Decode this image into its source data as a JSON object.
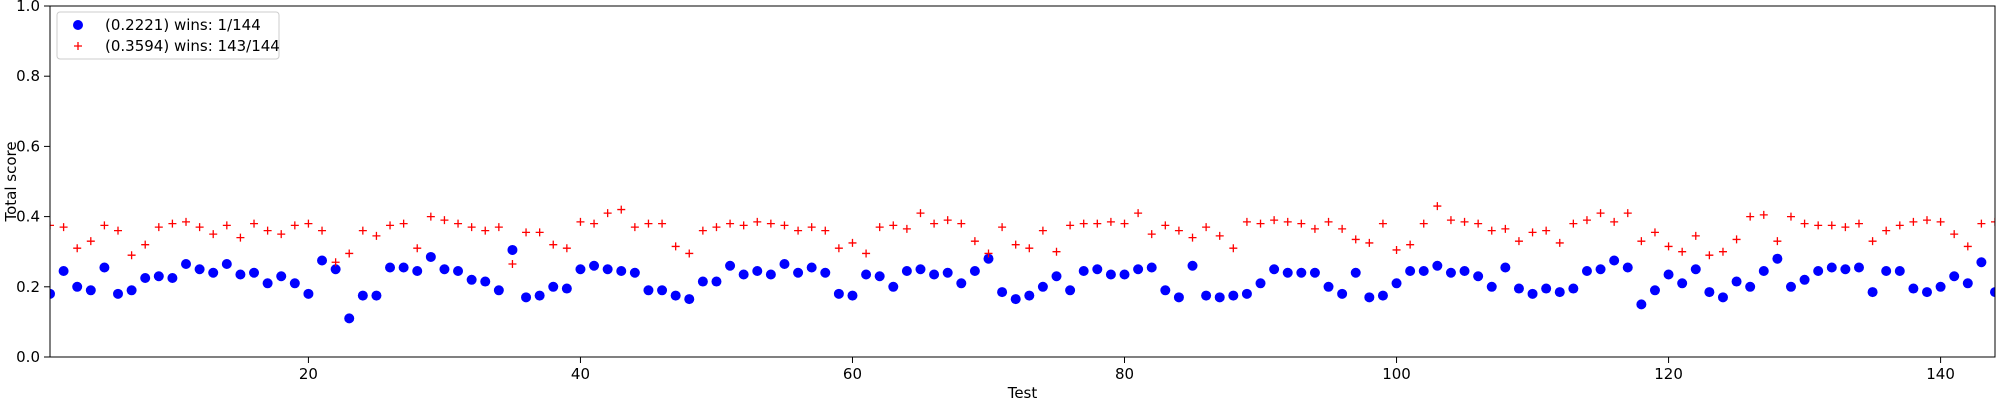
{
  "chart_data": {
    "type": "scatter",
    "title": "",
    "xlabel": "Test",
    "ylabel": "Total score",
    "xlim": [
      1,
      144
    ],
    "ylim": [
      0.0,
      1.0
    ],
    "xticks": [
      20,
      40,
      60,
      80,
      100,
      120,
      140
    ],
    "yticks": [
      0.0,
      0.2,
      0.4,
      0.6,
      0.8,
      1.0
    ],
    "xtick_labels": [
      "20",
      "40",
      "60",
      "80",
      "100",
      "120",
      "140"
    ],
    "ytick_labels": [
      "0.0",
      "0.2",
      "0.4",
      "0.6",
      "0.8",
      "1.0"
    ],
    "grid": false,
    "legend_position": "top-left",
    "colors": {
      "series1": "#0000ff",
      "series2": "#ff0000"
    },
    "series": [
      {
        "name": "(0.2221) wins: 1/144",
        "marker": "circle",
        "y": [
          0.18,
          0.245,
          0.2,
          0.19,
          0.255,
          0.18,
          0.19,
          0.225,
          0.23,
          0.225,
          0.265,
          0.25,
          0.24,
          0.265,
          0.235,
          0.24,
          0.21,
          0.23,
          0.21,
          0.18,
          0.275,
          0.25,
          0.11,
          0.175,
          0.175,
          0.255,
          0.255,
          0.245,
          0.285,
          0.25,
          0.245,
          0.22,
          0.215,
          0.19,
          0.305,
          0.17,
          0.175,
          0.2,
          0.195,
          0.25,
          0.26,
          0.25,
          0.245,
          0.24,
          0.19,
          0.19,
          0.175,
          0.165,
          0.215,
          0.215,
          0.26,
          0.235,
          0.245,
          0.235,
          0.265,
          0.24,
          0.255,
          0.24,
          0.18,
          0.175,
          0.235,
          0.23,
          0.2,
          0.245,
          0.25,
          0.235,
          0.24,
          0.21,
          0.245,
          0.28,
          0.185,
          0.165,
          0.175,
          0.2,
          0.23,
          0.19,
          0.245,
          0.25,
          0.235,
          0.235,
          0.25,
          0.255,
          0.19,
          0.17,
          0.26,
          0.175,
          0.17,
          0.175,
          0.18,
          0.21,
          0.25,
          0.24,
          0.24,
          0.24,
          0.2,
          0.18,
          0.24,
          0.17,
          0.175,
          0.21,
          0.245,
          0.245,
          0.26,
          0.24,
          0.245,
          0.23,
          0.2,
          0.255,
          0.195,
          0.18,
          0.195,
          0.185,
          0.195,
          0.245,
          0.25,
          0.275,
          0.255,
          0.15,
          0.19,
          0.235,
          0.21,
          0.25,
          0.185,
          0.17,
          0.215,
          0.2,
          0.245,
          0.28,
          0.2,
          0.22,
          0.245,
          0.255,
          0.25,
          0.255,
          0.185,
          0.245,
          0.245,
          0.195,
          0.185,
          0.2,
          0.23,
          0.21,
          0.27,
          0.185
        ]
      },
      {
        "name": "(0.3594) wins: 143/144",
        "marker": "plus",
        "y": [
          0.375,
          0.37,
          0.31,
          0.33,
          0.375,
          0.36,
          0.29,
          0.32,
          0.37,
          0.38,
          0.385,
          0.37,
          0.35,
          0.375,
          0.34,
          0.38,
          0.36,
          0.35,
          0.375,
          0.38,
          0.36,
          0.27,
          0.295,
          0.36,
          0.345,
          0.375,
          0.38,
          0.31,
          0.4,
          0.39,
          0.38,
          0.37,
          0.36,
          0.37,
          0.265,
          0.355,
          0.355,
          0.32,
          0.31,
          0.385,
          0.38,
          0.41,
          0.42,
          0.37,
          0.38,
          0.38,
          0.315,
          0.295,
          0.36,
          0.37,
          0.38,
          0.375,
          0.385,
          0.38,
          0.375,
          0.36,
          0.37,
          0.36,
          0.31,
          0.325,
          0.295,
          0.37,
          0.375,
          0.365,
          0.41,
          0.38,
          0.39,
          0.38,
          0.33,
          0.295,
          0.37,
          0.32,
          0.31,
          0.36,
          0.3,
          0.375,
          0.38,
          0.38,
          0.385,
          0.38,
          0.41,
          0.35,
          0.375,
          0.36,
          0.34,
          0.37,
          0.345,
          0.31,
          0.385,
          0.38,
          0.39,
          0.385,
          0.38,
          0.365,
          0.385,
          0.365,
          0.335,
          0.325,
          0.38,
          0.305,
          0.32,
          0.38,
          0.43,
          0.39,
          0.385,
          0.38,
          0.36,
          0.365,
          0.33,
          0.355,
          0.36,
          0.325,
          0.38,
          0.39,
          0.41,
          0.385,
          0.41,
          0.33,
          0.355,
          0.315,
          0.3,
          0.345,
          0.29,
          0.3,
          0.335,
          0.4,
          0.405,
          0.33,
          0.4,
          0.38,
          0.375,
          0.375,
          0.37,
          0.38,
          0.33,
          0.36,
          0.375,
          0.385,
          0.39,
          0.385,
          0.35,
          0.315,
          0.38,
          0.385
        ]
      }
    ]
  }
}
